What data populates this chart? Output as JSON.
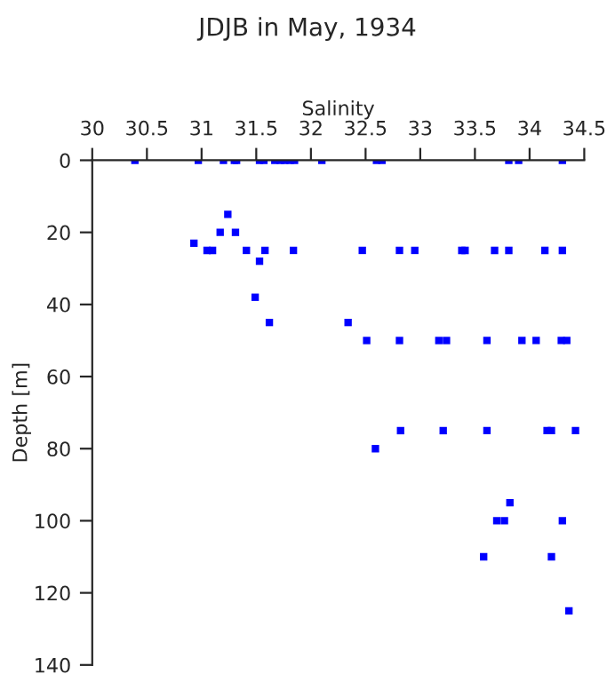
{
  "chart_data": {
    "type": "scatter",
    "title": "JDJB in May, 1934",
    "xlabel": "Salinity",
    "ylabel": "Depth [m]",
    "series": [
      {
        "color": "#0000ff",
        "x": [
          30.39,
          30.97,
          31.2,
          31.3,
          31.32,
          31.53,
          31.57,
          31.67,
          31.72,
          31.76,
          31.81,
          31.85,
          32.1,
          32.6,
          32.65,
          33.81,
          33.9,
          34.3,
          31.24,
          31.17,
          31.31,
          30.93,
          31.05,
          31.1,
          31.41,
          31.58,
          31.84,
          32.47,
          32.81,
          32.95,
          33.38,
          33.41,
          33.68,
          33.81,
          34.14,
          34.3,
          31.53,
          31.49,
          31.62,
          32.34,
          32.51,
          32.81,
          33.17,
          33.24,
          33.61,
          33.93,
          34.06,
          34.29,
          34.34,
          32.82,
          33.21,
          33.61,
          34.16,
          34.2,
          34.42,
          32.59,
          33.82,
          33.7,
          33.77,
          34.3,
          33.58,
          34.2,
          34.36
        ],
        "values": [
          0,
          0,
          0,
          0,
          0,
          0,
          0,
          0,
          0,
          0,
          0,
          0,
          0,
          0,
          0,
          0,
          0,
          0,
          15,
          20,
          20,
          23,
          25,
          25,
          25,
          25,
          25,
          25,
          25,
          25,
          25,
          25,
          25,
          25,
          25,
          25,
          28,
          38,
          45,
          45,
          50,
          50,
          50,
          50,
          50,
          50,
          50,
          50,
          50,
          75,
          75,
          75,
          75,
          75,
          75,
          80,
          95,
          100,
          100,
          100,
          110,
          110,
          125
        ]
      }
    ],
    "xlim": [
      30,
      34.5
    ],
    "xticks": [
      30,
      30.5,
      31,
      31.5,
      32,
      32.5,
      33,
      33.5,
      34,
      34.5
    ],
    "ylim": [
      140,
      0
    ],
    "yticks": [
      0,
      20,
      40,
      60,
      80,
      100,
      120,
      140
    ],
    "marker": "square",
    "grid": false,
    "legend": false
  }
}
